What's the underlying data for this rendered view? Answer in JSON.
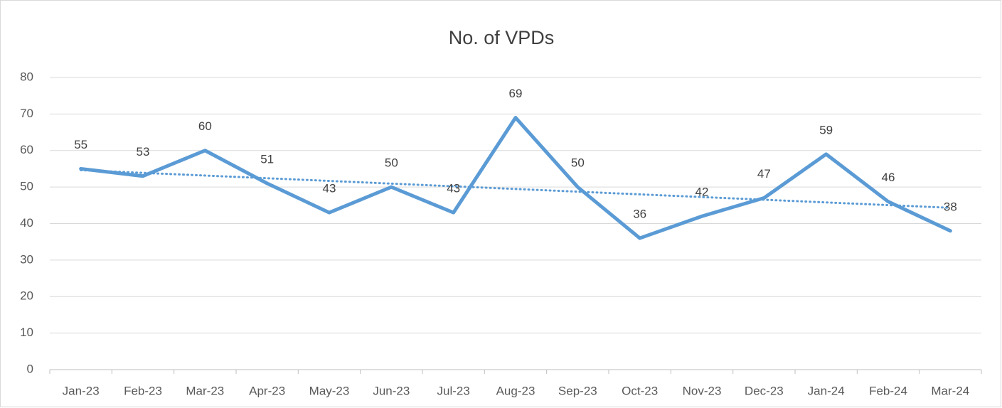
{
  "chart_data": {
    "type": "line",
    "title": "No. of VPDs",
    "categories": [
      "Jan-23",
      "Feb-23",
      "Mar-23",
      "Apr-23",
      "May-23",
      "Jun-23",
      "Jul-23",
      "Aug-23",
      "Sep-23",
      "Oct-23",
      "Nov-23",
      "Dec-23",
      "Jan-24",
      "Feb-24",
      "Mar-24"
    ],
    "values": [
      55,
      53,
      60,
      51,
      43,
      50,
      43,
      69,
      50,
      36,
      42,
      47,
      59,
      46,
      38
    ],
    "color": "#5b9bd5",
    "ylim": [
      0,
      80
    ],
    "yticks": [
      0,
      10,
      20,
      30,
      40,
      50,
      60,
      70,
      80
    ],
    "grid": true,
    "trendline": "linear"
  }
}
